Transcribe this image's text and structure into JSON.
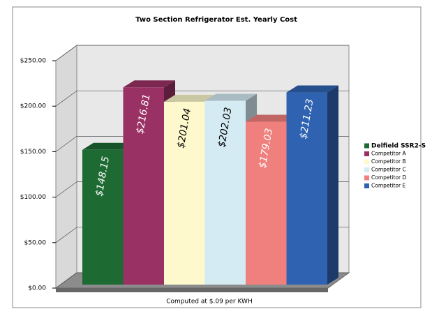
{
  "chart_data": {
    "type": "bar3d",
    "title": "Two Section Refrigerator Est. Yearly Cost",
    "x_label": "Computed at $.09 per KWH",
    "categories": [
      "Delfield SSR2-S",
      "Competitor A",
      "Competitor B",
      "Competitor C",
      "Competitor D",
      "Competitor E"
    ],
    "values": [
      148.15,
      216.81,
      201.04,
      202.03,
      179.03,
      211.23
    ],
    "value_labels": [
      "$148.15",
      "$216.81",
      "$201.04",
      "$202.03",
      "$179.03",
      "$211.23"
    ],
    "colors": [
      "#1d6a33",
      "#9a3164",
      "#fdf9cc",
      "#d4ebf4",
      "#f0807d",
      "#2f63b2"
    ],
    "ylim": [
      0,
      250
    ],
    "yticks": [
      {
        "value": 0,
        "label": "$0.00"
      },
      {
        "value": 50,
        "label": "$50.00"
      },
      {
        "value": 100,
        "label": "$100.00"
      },
      {
        "value": 150,
        "label": "$150.00"
      },
      {
        "value": 200,
        "label": "$200.00"
      },
      {
        "value": 250,
        "label": "$250.00"
      }
    ],
    "grid": true,
    "legend": "right"
  }
}
